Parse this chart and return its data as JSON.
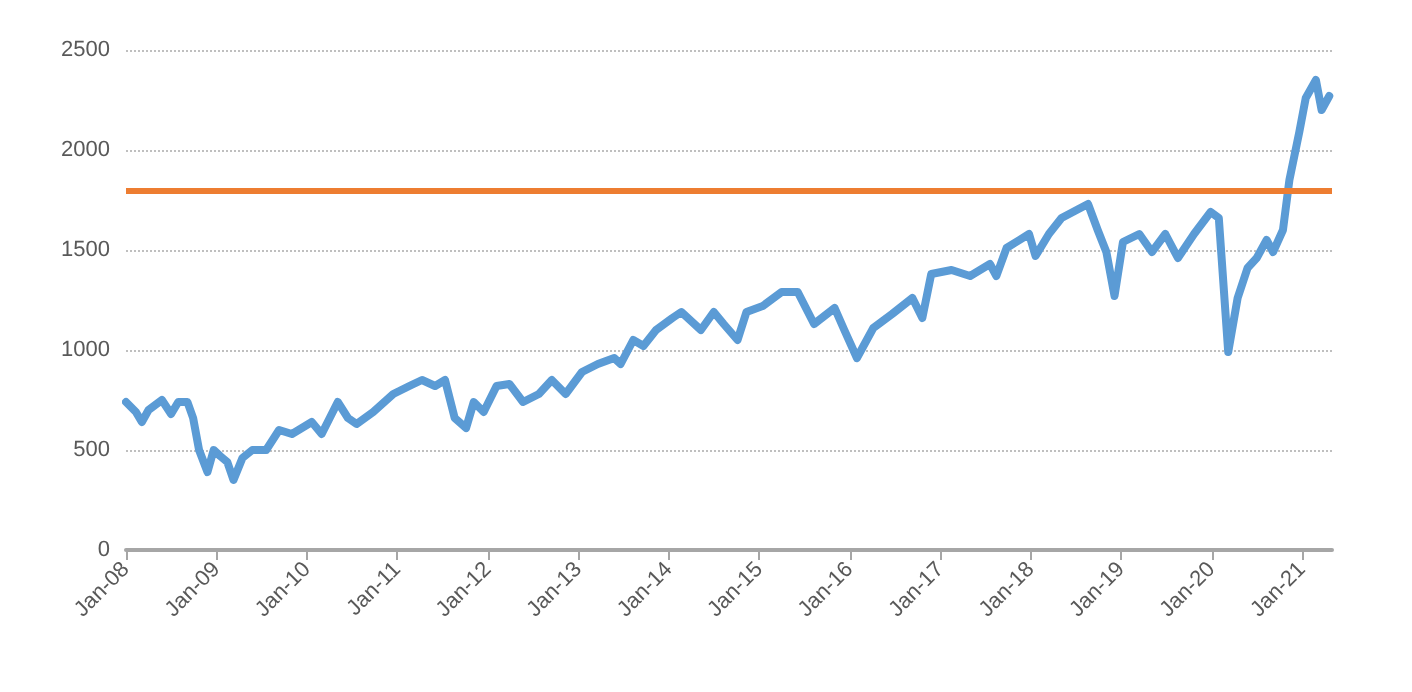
{
  "chart_data": {
    "type": "line",
    "x": [
      "2008-01-01",
      "2008-02-10",
      "2008-03-05",
      "2008-04-01",
      "2008-05-25",
      "2008-07-01",
      "2008-07-30",
      "2008-09-05",
      "2008-09-28",
      "2008-10-22",
      "2008-11-25",
      "2008-12-20",
      "2009-01-15",
      "2009-02-13",
      "2009-03-10",
      "2009-04-15",
      "2009-05-25",
      "2009-07-20",
      "2009-09-10",
      "2009-11-01",
      "2010-01-20",
      "2010-03-01",
      "2010-05-05",
      "2010-06-15",
      "2010-07-20",
      "2010-09-25",
      "2010-12-15",
      "2011-02-18",
      "2011-04-10",
      "2011-06-02",
      "2011-07-12",
      "2011-08-20",
      "2011-10-05",
      "2011-11-05",
      "2011-12-15",
      "2012-02-05",
      "2012-03-28",
      "2012-05-22",
      "2012-07-25",
      "2012-09-15",
      "2012-11-10",
      "2013-01-15",
      "2013-03-20",
      "2013-05-25",
      "2013-06-20",
      "2013-08-10",
      "2013-09-20",
      "2013-11-10",
      "2014-01-15",
      "2014-02-20",
      "2014-05-10",
      "2014-07-01",
      "2014-08-10",
      "2014-10-05",
      "2014-11-10",
      "2015-01-15",
      "2015-04-01",
      "2015-06-05",
      "2015-08-10",
      "2015-11-01",
      "2015-12-10",
      "2016-01-30",
      "2016-04-05",
      "2016-06-20",
      "2016-09-10",
      "2016-10-20",
      "2016-11-25",
      "2017-02-15",
      "2017-05-01",
      "2017-07-20",
      "2017-08-15",
      "2017-09-25",
      "2017-12-25",
      "2018-01-20",
      "2018-03-15",
      "2018-05-05",
      "2018-08-20",
      "2018-09-28",
      "2018-11-02",
      "2018-12-05",
      "2019-01-08",
      "2019-03-15",
      "2019-05-05",
      "2019-06-28",
      "2019-08-18",
      "2019-10-22",
      "2019-12-28",
      "2020-01-30",
      "2020-03-08",
      "2020-04-15",
      "2020-05-25",
      "2020-07-01",
      "2020-08-10",
      "2020-09-05",
      "2020-10-15",
      "2020-11-10",
      "2020-12-20",
      "2021-01-15",
      "2021-02-25",
      "2021-03-20",
      "2021-04-20"
    ],
    "series": [
      {
        "color": "#5b9bd5",
        "values": [
          740,
          690,
          640,
          700,
          750,
          680,
          740,
          740,
          660,
          500,
          390,
          500,
          470,
          440,
          350,
          460,
          500,
          500,
          600,
          580,
          640,
          580,
          740,
          660,
          630,
          690,
          780,
          820,
          850,
          820,
          850,
          660,
          610,
          740,
          690,
          820,
          830,
          740,
          780,
          850,
          780,
          890,
          930,
          960,
          930,
          1050,
          1020,
          1100,
          1160,
          1190,
          1100,
          1190,
          1130,
          1050,
          1190,
          1220,
          1290,
          1290,
          1130,
          1210,
          1100,
          960,
          1110,
          1180,
          1260,
          1160,
          1380,
          1400,
          1370,
          1430,
          1370,
          1510,
          1580,
          1470,
          1580,
          1660,
          1730,
          1600,
          1490,
          1270,
          1540,
          1580,
          1490,
          1580,
          1460,
          1580,
          1690,
          1660,
          990,
          1260,
          1410,
          1460,
          1550,
          1490,
          1600,
          1850,
          2090,
          2260,
          2350,
          2200,
          2270
        ]
      }
    ],
    "ref_lines": [
      {
        "axis": "y",
        "value": 1800,
        "color": "#ed7d31"
      }
    ],
    "xlim": [
      "2008-01-01",
      "2021-05-01"
    ],
    "xticks": [
      {
        "value": "2008-01-01",
        "label": "Jan-08"
      },
      {
        "value": "2009-01-01",
        "label": "Jan-09"
      },
      {
        "value": "2010-01-01",
        "label": "Jan-10"
      },
      {
        "value": "2011-01-01",
        "label": "Jan-11"
      },
      {
        "value": "2012-01-01",
        "label": "Jan-12"
      },
      {
        "value": "2013-01-01",
        "label": "Jan-13"
      },
      {
        "value": "2014-01-01",
        "label": "Jan-14"
      },
      {
        "value": "2015-01-01",
        "label": "Jan-15"
      },
      {
        "value": "2016-01-01",
        "label": "Jan-16"
      },
      {
        "value": "2017-01-01",
        "label": "Jan-17"
      },
      {
        "value": "2018-01-01",
        "label": "Jan-18"
      },
      {
        "value": "2019-01-01",
        "label": "Jan-19"
      },
      {
        "value": "2020-01-01",
        "label": "Jan-20"
      },
      {
        "value": "2021-01-01",
        "label": "Jan-21"
      }
    ],
    "ylim": [
      0,
      2500
    ],
    "yticks": [
      0,
      500,
      1000,
      1500,
      2000,
      2500
    ],
    "grid": "y",
    "marker": "none",
    "line_style": "solid"
  }
}
